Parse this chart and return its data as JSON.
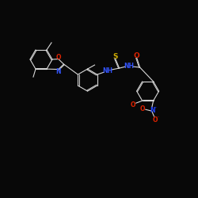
{
  "background_color": "#080808",
  "bond_color": "#d8d8d8",
  "atom_colors": {
    "O": "#dd2200",
    "N": "#3355ff",
    "S": "#ccaa00",
    "N_plus": "#2244ff"
  },
  "figsize": [
    2.5,
    2.5
  ],
  "dpi": 100
}
